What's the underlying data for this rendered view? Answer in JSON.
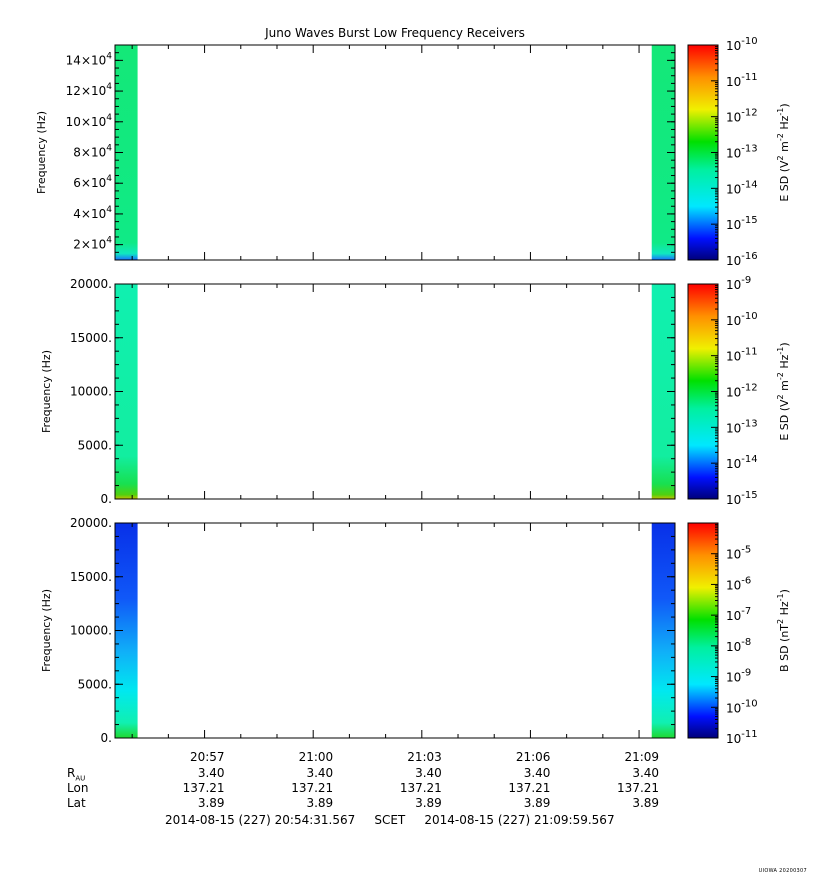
{
  "title": "Juno Waves Burst Low Frequency Receivers",
  "credit": "UIOWA 20200307",
  "time_axis": {
    "ticks": [
      "20:57",
      "21:00",
      "21:03",
      "21:06",
      "21:09"
    ]
  },
  "ephemeris": {
    "rows": [
      {
        "label": "R",
        "sub": "AU",
        "values": [
          "3.40",
          "3.40",
          "3.40",
          "3.40",
          "3.40"
        ]
      },
      {
        "label": "Lon",
        "sub": "",
        "values": [
          "137.21",
          "137.21",
          "137.21",
          "137.21",
          "137.21"
        ]
      },
      {
        "label": "Lat",
        "sub": "",
        "values": [
          "3.89",
          "3.89",
          "3.89",
          "3.89",
          "3.89"
        ]
      }
    ]
  },
  "time_range": {
    "start": "2014-08-15 (227) 20:54:31.567",
    "label": "SCET",
    "end": "2014-08-15 (227) 21:09:59.567"
  },
  "chart_data": [
    {
      "type": "heatmap",
      "panel": "top",
      "ylabel": "Frequency (Hz)",
      "ylim": [
        10000,
        150000
      ],
      "yticks": [
        {
          "mant": "2×10",
          "exp": "4",
          "v": 20000
        },
        {
          "mant": "4×10",
          "exp": "4",
          "v": 40000
        },
        {
          "mant": "6×10",
          "exp": "4",
          "v": 60000
        },
        {
          "mant": "8×10",
          "exp": "4",
          "v": 80000
        },
        {
          "mant": "10×10",
          "exp": "4",
          "v": 100000
        },
        {
          "mant": "12×10",
          "exp": "4",
          "v": 120000
        },
        {
          "mant": "14×10",
          "exp": "4",
          "v": 140000
        }
      ],
      "data_blocks": [
        {
          "x_start": "20:54:31",
          "x_end": "20:55:09",
          "level": "1e-14"
        },
        {
          "x_start": "21:09:21",
          "x_end": "21:09:59",
          "level": "1e-14"
        }
      ],
      "colorbar": {
        "label": "E SD (V² m⁻² Hz⁻¹)",
        "label_base": "E SD (V",
        "min_exp": -16,
        "max_exp": -10,
        "tick_exps": [
          -16,
          -15,
          -14,
          -13,
          -12,
          -11,
          -10
        ],
        "log": true
      }
    },
    {
      "type": "heatmap",
      "panel": "middle",
      "ylabel": "Frequency (Hz)",
      "ylim": [
        0,
        20000
      ],
      "yticks": [
        {
          "label": "0.",
          "v": 0
        },
        {
          "label": "5000.",
          "v": 5000
        },
        {
          "label": "10000.",
          "v": 10000
        },
        {
          "label": "15000.",
          "v": 15000
        },
        {
          "label": "20000.",
          "v": 20000
        }
      ],
      "data_blocks": [
        {
          "x_start": "20:54:31",
          "x_end": "20:55:09",
          "level": "1e-13"
        },
        {
          "x_start": "21:09:21",
          "x_end": "21:09:59",
          "level": "1e-13"
        }
      ],
      "colorbar": {
        "label": "E SD (V² m⁻² Hz⁻¹)",
        "label_base": "E SD (V",
        "min_exp": -15,
        "max_exp": -9,
        "tick_exps": [
          -15,
          -14,
          -13,
          -12,
          -11,
          -10,
          -9
        ],
        "log": true
      }
    },
    {
      "type": "heatmap",
      "panel": "bottom",
      "ylabel": "Frequency (Hz)",
      "ylim": [
        0,
        20000
      ],
      "yticks": [
        {
          "label": "0.",
          "v": 0
        },
        {
          "label": "5000.",
          "v": 5000
        },
        {
          "label": "10000.",
          "v": 10000
        },
        {
          "label": "15000.",
          "v": 15000
        },
        {
          "label": "20000.",
          "v": 20000
        }
      ],
      "data_blocks": [
        {
          "x_start": "20:54:31",
          "x_end": "20:55:09",
          "level": "1e-10"
        },
        {
          "x_start": "21:09:21",
          "x_end": "21:09:59",
          "level": "1e-10"
        }
      ],
      "colorbar": {
        "label": "B SD (nT² Hz⁻¹)",
        "label_base": "B SD (nT",
        "min_exp": -11,
        "max_exp": -4,
        "tick_exps": [
          -11,
          -10,
          -9,
          -8,
          -7,
          -6,
          -5
        ],
        "log": true
      }
    }
  ]
}
